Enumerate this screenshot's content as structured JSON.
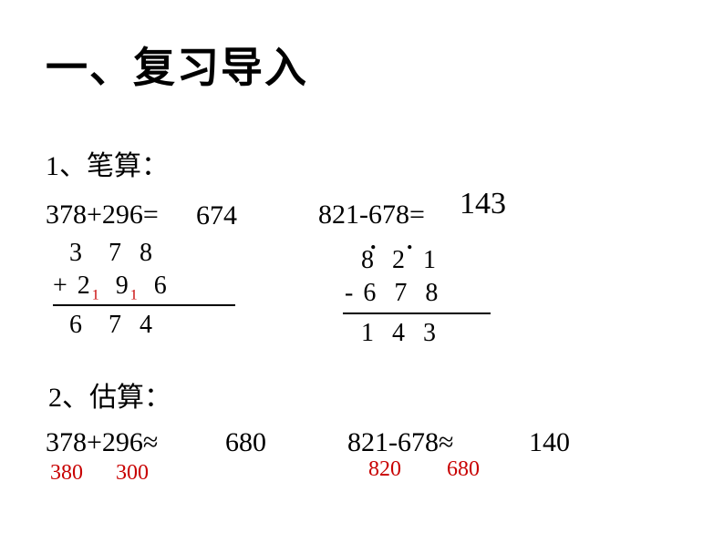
{
  "title": "一、复习导入",
  "section1": "1、笔算：",
  "section2": "2、估算：",
  "eq1": "378+296=",
  "eq1_ans": "674",
  "eq2": "821-678=",
  "eq2_ans": "143",
  "eq3": "378+296≈",
  "eq3_ans": "680",
  "eq4": "821-678≈",
  "eq4_ans": "140",
  "est1": "380",
  "est2": "300",
  "est3": "820",
  "est4": "680",
  "vcalc1": {
    "r1": "  3   7  8",
    "r2a": "+ 2",
    "r2b": "  9",
    "r2c": "  6",
    "carry1": "1",
    "carry2": "1",
    "r3": "  6   7  4"
  },
  "vcalc2": {
    "r1": "   8  2  1",
    "r2": " - 6  7  8",
    "r3": "   1  4  3"
  },
  "dot": "."
}
